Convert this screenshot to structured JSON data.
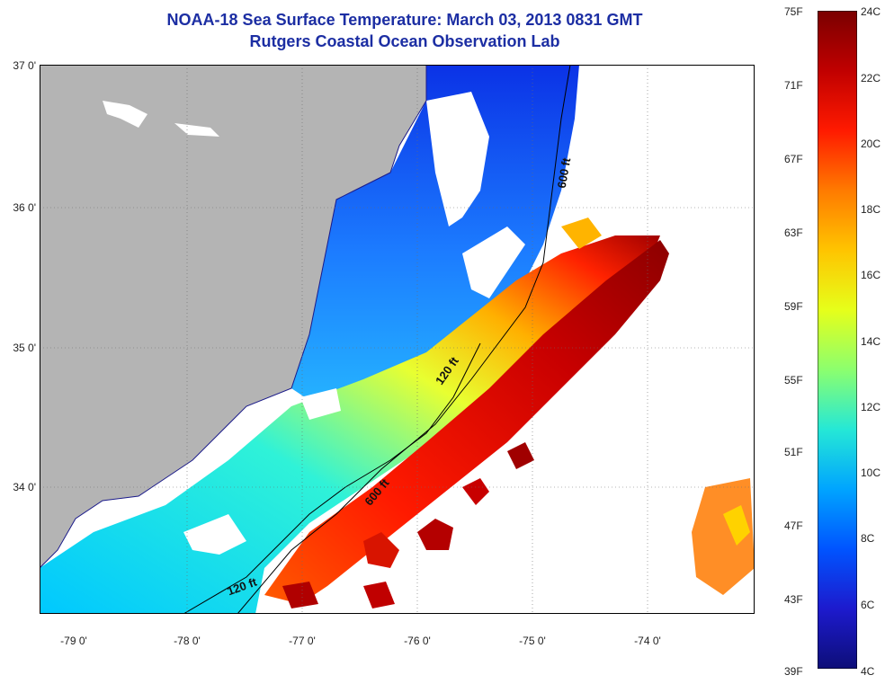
{
  "title": {
    "line1": "NOAA-18 Sea Surface Temperature:  March 03, 2013 0831 GMT",
    "line2": "Rutgers Coastal Ocean Observation Lab"
  },
  "map": {
    "lat_labels": [
      "37 0'",
      "36 0'",
      "35 0'",
      "34 0'"
    ],
    "lon_labels": [
      "-79 0'",
      "-78 0'",
      "-77 0'",
      "-76 0'",
      "-75 0'",
      "-74 0'"
    ],
    "depth_contours": [
      {
        "label": "600 ft"
      },
      {
        "label": "120 ft"
      },
      {
        "label": "600 ft"
      },
      {
        "label": "120 ft"
      }
    ]
  },
  "colorbar": {
    "fahrenheit_labels": [
      "75F",
      "71F",
      "67F",
      "63F",
      "59F",
      "55F",
      "51F",
      "47F",
      "43F",
      "39F"
    ],
    "celsius_labels": [
      "24C",
      "22C",
      "20C",
      "18C",
      "16C",
      "14C",
      "12C",
      "10C",
      "8C",
      "6C",
      "4C"
    ],
    "colors": [
      "#7a0000",
      "#c00000",
      "#ff1a00",
      "#ff7a00",
      "#ffc400",
      "#e6ff1a",
      "#8cff6e",
      "#25e8d6",
      "#00a4ff",
      "#0054ff",
      "#1d1acd",
      "#0d0e78"
    ]
  },
  "colors": {
    "land": "#b4b4b4",
    "grid": "#6d6d6d",
    "title": "#1c2ea3"
  }
}
